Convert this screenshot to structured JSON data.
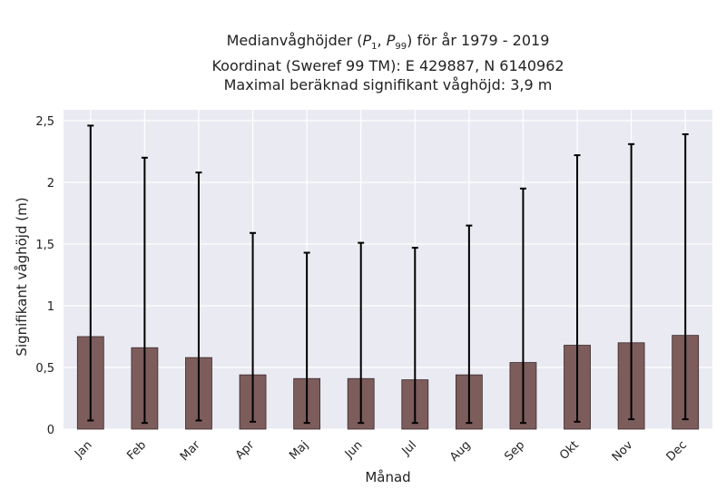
{
  "chart_data": {
    "type": "bar",
    "title_lines": [
      "Medianvåghöjder (P1, P99) för år 1979 - 2019",
      "Koordinat (Sweref 99 TM): E 429887, N 6140962",
      "Maximal beräknad signifikant våghöjd: 3,9 m"
    ],
    "xlabel": "Månad",
    "ylabel": "Signifikant våghöjd (m)",
    "categories": [
      "Jan",
      "Feb",
      "Mar",
      "Apr",
      "Maj",
      "Jun",
      "Jul",
      "Aug",
      "Sep",
      "Okt",
      "Nov",
      "Dec"
    ],
    "values": [
      0.75,
      0.66,
      0.58,
      0.44,
      0.41,
      0.41,
      0.4,
      0.44,
      0.54,
      0.68,
      0.7,
      0.76
    ],
    "p1": [
      0.07,
      0.05,
      0.07,
      0.06,
      0.05,
      0.05,
      0.05,
      0.05,
      0.05,
      0.06,
      0.08,
      0.08
    ],
    "p99": [
      2.46,
      2.2,
      2.08,
      1.59,
      1.43,
      1.51,
      1.47,
      1.65,
      1.95,
      2.22,
      2.31,
      2.39
    ],
    "ylim": [
      0,
      2.5
    ],
    "yticks": [
      "0",
      "0,5",
      "1",
      "1,5",
      "2",
      "2,5"
    ],
    "ytick_values": [
      0,
      0.5,
      1,
      1.5,
      2,
      2.5
    ],
    "grid": true,
    "colors": {
      "bar": "#7d5c5c",
      "bar_edge": "#3a2a2a",
      "errorbar": "#000000",
      "plot_bg": "#eaeaf2",
      "grid": "#ffffff"
    }
  }
}
